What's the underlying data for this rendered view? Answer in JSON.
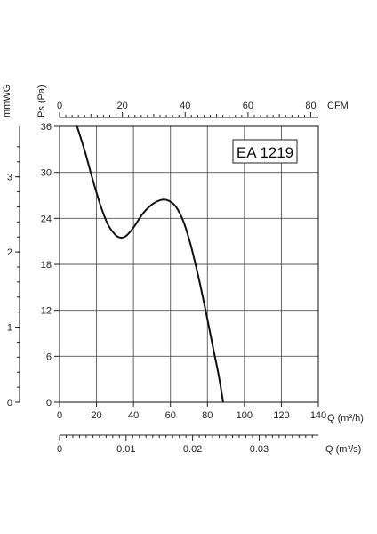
{
  "chart_data": {
    "type": "line",
    "model_label": "EA 1219",
    "y_left_title": "mmWG",
    "y_left_ticks": [
      0,
      1,
      2,
      3
    ],
    "y_title": "Ps (Pa)",
    "y_ticks": [
      0,
      6,
      12,
      18,
      24,
      30,
      36
    ],
    "ylim": [
      0,
      36
    ],
    "x_title": "Q (m³/h)",
    "x_ticks": [
      0,
      20,
      40,
      60,
      80,
      100,
      120,
      140
    ],
    "xlim": [
      0,
      140
    ],
    "x_top_title": "CFM",
    "x_top_ticks": [
      0,
      20,
      40,
      60,
      80
    ],
    "x_top_lim": [
      0,
      82.4
    ],
    "x_bottom_title": "Q (m³/s)",
    "x_bottom_ticks": [
      "0",
      "0.01",
      "0.02",
      "0.03"
    ],
    "x_bottom_values": [
      0,
      0.01,
      0.02,
      0.03
    ],
    "x_bottom_lim": [
      0,
      0.0389
    ],
    "grid": true,
    "series": [
      {
        "points": [
          [
            9.5,
            36
          ],
          [
            14,
            32.5
          ],
          [
            18,
            29
          ],
          [
            22,
            25.8
          ],
          [
            26,
            23.3
          ],
          [
            30,
            21.9
          ],
          [
            33,
            21.5
          ],
          [
            36,
            21.7
          ],
          [
            40,
            22.8
          ],
          [
            45,
            24.6
          ],
          [
            50,
            25.8
          ],
          [
            55,
            26.4
          ],
          [
            59,
            26.3
          ],
          [
            63,
            25.5
          ],
          [
            67,
            23.6
          ],
          [
            71,
            20.5
          ],
          [
            75,
            16.5
          ],
          [
            79,
            12
          ],
          [
            83,
            7.2
          ],
          [
            86,
            3.6
          ],
          [
            88.5,
            0
          ]
        ]
      }
    ]
  }
}
